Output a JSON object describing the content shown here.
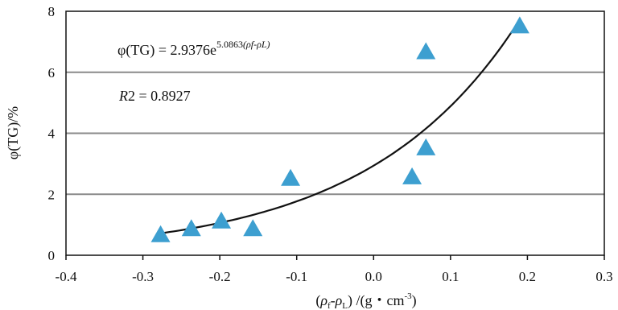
{
  "chart_data": {
    "type": "scatter",
    "x_ticks": [
      "-0.4",
      "-0.3",
      "-0.2",
      "-0.1",
      "0.0",
      "0.1",
      "0.2",
      "0.3"
    ],
    "y_ticks": [
      "0",
      "2",
      "4",
      "6",
      "8"
    ],
    "xlim": [
      -0.4,
      0.3
    ],
    "ylim": [
      0,
      8
    ],
    "grid": "horizontal",
    "ylabel": "φ(TG)/%",
    "xlabel": "(ρf-ρL) /(g・cm-3)",
    "xlabel_parts": {
      "open": "(",
      "rho_f": "ρ",
      "sub_f": "f",
      "dash": "-",
      "rho_L": "ρ",
      "sub_L": "L",
      "rest": ") /(g・cm",
      "sup": "-3",
      "close": ")"
    },
    "equation": {
      "lhs": "φ(TG) = 2.9376e",
      "exponent": "5.0863",
      "exponent_var": "(ρf-ρL)"
    },
    "r_squared_label": "R",
    "r_squared_value": "2 = 0.8927",
    "marker_color": "#3d9fd0",
    "line_color": "#111111",
    "points": [
      {
        "x": -0.277,
        "y": 0.65
      },
      {
        "x": -0.237,
        "y": 0.85
      },
      {
        "x": -0.198,
        "y": 1.1
      },
      {
        "x": -0.157,
        "y": 0.85
      },
      {
        "x": -0.108,
        "y": 2.5
      },
      {
        "x": 0.05,
        "y": 2.55
      },
      {
        "x": 0.068,
        "y": 6.65
      },
      {
        "x": 0.068,
        "y": 3.5
      },
      {
        "x": 0.19,
        "y": 7.5
      }
    ],
    "fit": {
      "type": "exponential",
      "a": 2.9376,
      "b": 5.0863,
      "x_range": [
        -0.277,
        0.19
      ]
    }
  }
}
